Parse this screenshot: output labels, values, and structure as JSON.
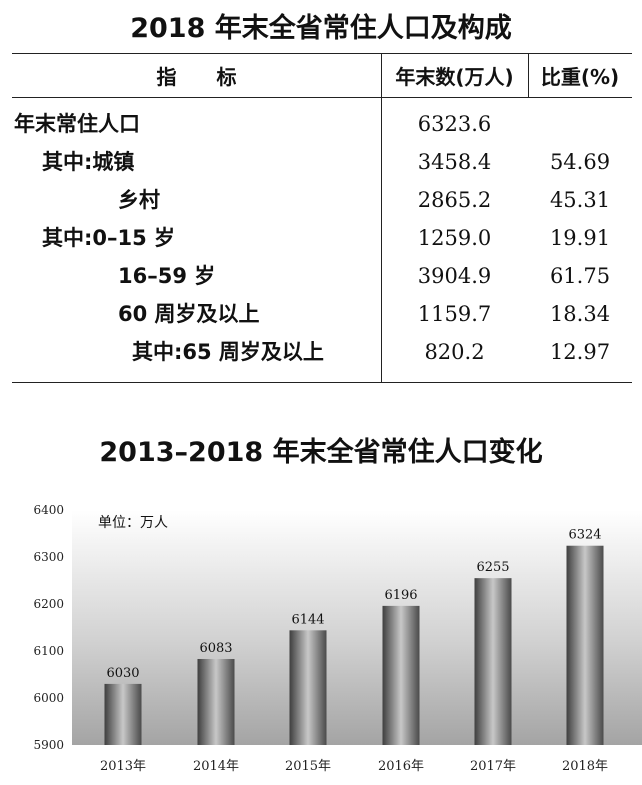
{
  "table": {
    "title": "2018 年末全省常住人口及构成",
    "headers": {
      "indicator": "指　　标",
      "count": "年末数(万人)",
      "share": "比重(%)"
    },
    "rows": [
      {
        "label": "年末常住人口",
        "count": "6323.6",
        "share": ""
      },
      {
        "label": "其中:城镇",
        "count": "3458.4",
        "share": "54.69"
      },
      {
        "label": "乡村",
        "count": "2865.2",
        "share": "45.31"
      },
      {
        "label": "其中:0–15 岁",
        "count": "1259.0",
        "share": "19.91"
      },
      {
        "label": "16–59 岁",
        "count": "3904.9",
        "share": "61.75"
      },
      {
        "label": "60 周岁及以上",
        "count": "1159.7",
        "share": "18.34"
      },
      {
        "label": "其中:65 周岁及以上",
        "count": "820.2",
        "share": "12.97"
      }
    ]
  },
  "chart_data": {
    "type": "bar",
    "title": "2013–2018 年末全省常住人口变化",
    "unit_label": "单位：万人",
    "categories": [
      "2013年",
      "2014年",
      "2015年",
      "2016年",
      "2017年",
      "2018年"
    ],
    "values": [
      6030,
      6083,
      6144,
      6196,
      6255,
      6324
    ],
    "ylim": [
      5900,
      6400
    ],
    "yticks": [
      5900,
      6000,
      6100,
      6200,
      6300,
      6400
    ],
    "grid": false,
    "legend": "none"
  }
}
